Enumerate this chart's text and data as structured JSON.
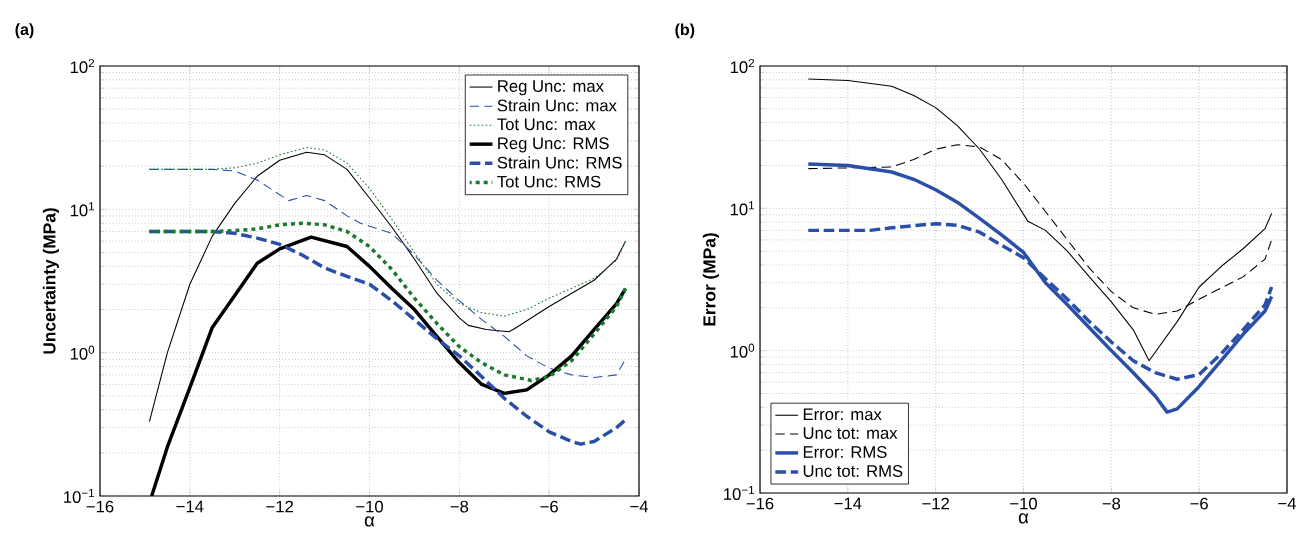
{
  "chart_data": [
    {
      "type": "line",
      "title": "(a)",
      "xlabel": "α",
      "ylabel": "Uncertainty (MPa)",
      "log": "y",
      "grid": true,
      "legend": "top right",
      "xlim": [
        -16,
        -4
      ],
      "ylim": [
        0.1,
        100
      ],
      "xticks": [
        {
          "value": -16,
          "label": "−16"
        },
        {
          "value": -14,
          "label": "−14"
        },
        {
          "value": -12,
          "label": "−12"
        },
        {
          "value": -10,
          "label": "−10"
        },
        {
          "value": -8,
          "label": "−8"
        },
        {
          "value": -6,
          "label": "−6"
        },
        {
          "value": -4,
          "label": "−4"
        }
      ],
      "yticks": [
        {
          "value": 0.1,
          "label": "10$^{−1}$"
        },
        {
          "value": 1,
          "label": "10$^{0}$"
        },
        {
          "value": 10,
          "label": "10$^{1}$"
        },
        {
          "value": 100,
          "label": "10$^{2}$"
        }
      ],
      "series": [
        {
          "name": "Reg Unc: max",
          "color": "#000000",
          "line_style": "solid",
          "x": [
            -14.9,
            -14.5,
            -14,
            -13.5,
            -13,
            -12.5,
            -12,
            -11.4,
            -11,
            -10.5,
            -10,
            -9.5,
            -9,
            -8.5,
            -8,
            -7.8,
            -7.4,
            -6.9,
            -6.8,
            -6,
            -5,
            -4.5,
            -4.3
          ],
          "values": [
            0.33,
            1.0,
            3,
            6.5,
            11,
            17,
            22,
            25,
            24,
            19,
            12,
            7.5,
            4.5,
            2.6,
            1.75,
            1.55,
            1.45,
            1.4,
            1.45,
            2.1,
            3.2,
            4.5,
            6
          ]
        },
        {
          "name": "Strain Unc: max",
          "color": "#2a4fa8",
          "line_style": "dashed",
          "x": [
            -14.9,
            -13.5,
            -13,
            -12.5,
            -11.8,
            -11.4,
            -11,
            -10.5,
            -10.2,
            -9.5,
            -9,
            -8.5,
            -8,
            -7.5,
            -7,
            -6.5,
            -6,
            -5.5,
            -5,
            -4.5,
            -4.3
          ],
          "values": [
            19,
            19,
            18.5,
            16,
            11.5,
            12.5,
            11.5,
            9,
            8,
            6.8,
            4.8,
            3.2,
            2.3,
            1.7,
            1.3,
            0.95,
            0.78,
            0.7,
            0.67,
            0.7,
            0.9
          ]
        },
        {
          "name": "Tot Unc: max",
          "color": "#1a7a30",
          "line_style": "dotted",
          "x": [
            -14.9,
            -13.5,
            -13,
            -12.5,
            -12,
            -11.4,
            -11,
            -10.5,
            -10,
            -9.5,
            -9,
            -8.5,
            -8,
            -7.5,
            -7,
            -6.5,
            -6,
            -5,
            -4.5,
            -4.3
          ],
          "values": [
            19,
            19,
            19.5,
            21,
            24,
            27,
            26,
            21,
            14,
            8.5,
            5,
            3,
            2.2,
            1.9,
            1.8,
            2.0,
            2.4,
            3.3,
            4.4,
            6
          ]
        },
        {
          "name": "Reg Unc: RMS",
          "color": "#000000",
          "line_style": "solid",
          "x": [
            -14.85,
            -14.5,
            -14,
            -13.5,
            -13,
            -12.5,
            -12,
            -11.3,
            -10.5,
            -10,
            -9.5,
            -9,
            -8.5,
            -8,
            -7.5,
            -7,
            -6.5,
            -6,
            -5.5,
            -5,
            -4.5,
            -4.3
          ],
          "values": [
            0.1,
            0.22,
            0.57,
            1.5,
            2.5,
            4.2,
            5.3,
            6.4,
            5.5,
            4.0,
            2.8,
            2.0,
            1.3,
            0.85,
            0.6,
            0.52,
            0.55,
            0.7,
            0.95,
            1.45,
            2.2,
            2.8
          ]
        },
        {
          "name": "Strain Unc: RMS",
          "color": "#2a4fa8",
          "line_style": "dashed",
          "x": [
            -14.9,
            -13.5,
            -13,
            -12.5,
            -12,
            -11.5,
            -11,
            -10.5,
            -10,
            -9.5,
            -9,
            -8.5,
            -8,
            -7.5,
            -7,
            -6.5,
            -6,
            -5.5,
            -5.3,
            -5,
            -4.5,
            -4.3
          ],
          "values": [
            7,
            7,
            6.8,
            6.3,
            5.7,
            4.8,
            3.9,
            3.4,
            3.0,
            2.3,
            1.7,
            1.25,
            0.95,
            0.68,
            0.48,
            0.36,
            0.28,
            0.24,
            0.23,
            0.24,
            0.3,
            0.34
          ]
        },
        {
          "name": "Tot Unc: RMS",
          "color": "#1a7a30",
          "line_style": "dotted",
          "x": [
            -14.9,
            -13.5,
            -13,
            -12.5,
            -12,
            -11.5,
            -11,
            -10.5,
            -10,
            -9.5,
            -9,
            -8.5,
            -8,
            -7.5,
            -7,
            -6.4,
            -6,
            -5.5,
            -5,
            -4.5,
            -4.3
          ],
          "values": [
            7,
            7,
            7.1,
            7.3,
            7.8,
            8,
            7.8,
            7,
            5.5,
            3.8,
            2.4,
            1.6,
            1.1,
            0.85,
            0.7,
            0.64,
            0.68,
            0.88,
            1.35,
            2.1,
            2.8
          ]
        }
      ]
    },
    {
      "type": "line",
      "title": "(b)",
      "xlabel": "α",
      "ylabel": "Error (MPa)",
      "log": "y",
      "grid": true,
      "legend": "bottom left",
      "xlim": [
        -16,
        -4
      ],
      "ylim": [
        0.1,
        100
      ],
      "xticks": [
        {
          "value": -16,
          "label": "−16"
        },
        {
          "value": -14,
          "label": "−14"
        },
        {
          "value": -12,
          "label": "−12"
        },
        {
          "value": -10,
          "label": "−10"
        },
        {
          "value": -8,
          "label": "−8"
        },
        {
          "value": -6,
          "label": "−6"
        },
        {
          "value": -4,
          "label": "−4"
        }
      ],
      "yticks": [
        {
          "value": 0.1,
          "label": "10$^{−1}$"
        },
        {
          "value": 1,
          "label": "10$^{0}$"
        },
        {
          "value": 10,
          "label": "10$^{1}$"
        },
        {
          "value": 100,
          "label": "10$^{2}$"
        }
      ],
      "series": [
        {
          "name": "Error: max",
          "color": "#000000",
          "line_style": "solid",
          "x": [
            -14.9,
            -14,
            -13,
            -12.5,
            -12,
            -11.5,
            -11,
            -10.5,
            -9.9,
            -9.5,
            -9,
            -8.5,
            -8,
            -7.5,
            -7.14,
            -6.5,
            -6,
            -5.5,
            -5,
            -4.5,
            -4.35
          ],
          "values": [
            81,
            79,
            72,
            62,
            51,
            38,
            26,
            16,
            8.1,
            7,
            5,
            3.3,
            2.2,
            1.4,
            0.85,
            1.6,
            2.8,
            3.9,
            5.2,
            7.2,
            9.2
          ]
        },
        {
          "name": "Unc tot: max",
          "color": "#000000",
          "line_style": "dashed",
          "x": [
            -14.9,
            -13,
            -12.5,
            -12,
            -11.5,
            -11,
            -10.5,
            -10,
            -9.5,
            -9,
            -8.5,
            -8,
            -7.5,
            -7,
            -6.5,
            -6,
            -5,
            -4.5,
            -4.35
          ],
          "values": [
            19,
            19.5,
            22,
            26,
            28,
            27,
            22,
            15,
            9.5,
            6,
            3.8,
            2.6,
            2.0,
            1.8,
            1.9,
            2.3,
            3.3,
            4.4,
            6
          ]
        },
        {
          "name": "Error: RMS",
          "color": "#2a4fa8",
          "line_style": "solid",
          "x": [
            -14.9,
            -14,
            -13,
            -12.5,
            -12,
            -11.5,
            -11,
            -10.5,
            -10,
            -9.5,
            -9,
            -8.5,
            -8,
            -7.5,
            -7,
            -6.73,
            -6.5,
            -6,
            -5.5,
            -5,
            -4.5,
            -4.35
          ],
          "values": [
            20.5,
            20,
            18,
            16,
            13.5,
            11,
            8.5,
            6.5,
            4.9,
            3.0,
            2.1,
            1.45,
            1.0,
            0.7,
            0.48,
            0.37,
            0.39,
            0.56,
            0.85,
            1.3,
            1.9,
            2.4
          ]
        },
        {
          "name": "Unc tot: RMS",
          "color": "#2a4fa8",
          "line_style": "dashed",
          "x": [
            -14.9,
            -13.5,
            -13,
            -12,
            -11.5,
            -11,
            -10.5,
            -10,
            -9.5,
            -9,
            -8.5,
            -8,
            -7.5,
            -7,
            -6.5,
            -6,
            -5.5,
            -5,
            -4.5,
            -4.35
          ],
          "values": [
            7,
            7,
            7.3,
            7.8,
            7.6,
            6.8,
            5.5,
            4.5,
            3.2,
            2.3,
            1.6,
            1.15,
            0.85,
            0.7,
            0.63,
            0.68,
            0.95,
            1.4,
            2.1,
            2.8
          ]
        }
      ]
    }
  ]
}
